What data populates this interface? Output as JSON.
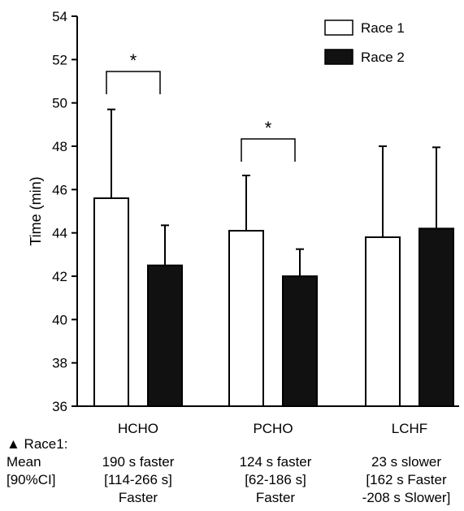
{
  "chart_data": {
    "type": "bar",
    "title": "",
    "xlabel": "",
    "ylabel": "Time (min)",
    "ylim": [
      36,
      54
    ],
    "yticks": [
      36,
      38,
      40,
      42,
      44,
      46,
      48,
      50,
      52,
      54
    ],
    "grid": false,
    "legend_position": "top-right",
    "categories": [
      "HCHO",
      "PCHO",
      "LCHF"
    ],
    "series": [
      {
        "name": "Race 1",
        "fill": "#ffffff",
        "values": [
          45.6,
          44.1,
          43.8
        ],
        "errors": [
          4.1,
          2.55,
          4.2
        ]
      },
      {
        "name": "Race 2",
        "fill": "#111111",
        "values": [
          42.5,
          42.0,
          44.2
        ],
        "errors": [
          1.85,
          1.25,
          3.75
        ]
      }
    ],
    "significance": [
      {
        "category": "HCHO",
        "label": "*"
      },
      {
        "category": "PCHO",
        "label": "*"
      }
    ]
  },
  "stats_table": {
    "row_labels": [
      "▲ Race1:",
      "Mean",
      "[90%CI]"
    ],
    "columns": [
      {
        "category": "HCHO",
        "lines": [
          "190 s faster",
          "[114-266 s]",
          "Faster"
        ]
      },
      {
        "category": "PCHO",
        "lines": [
          "124 s faster",
          "[62-186 s]",
          "Faster"
        ]
      },
      {
        "category": "LCHF",
        "lines": [
          "23 s slower",
          "[162 s Faster",
          "-208 s Slower]"
        ]
      }
    ]
  }
}
